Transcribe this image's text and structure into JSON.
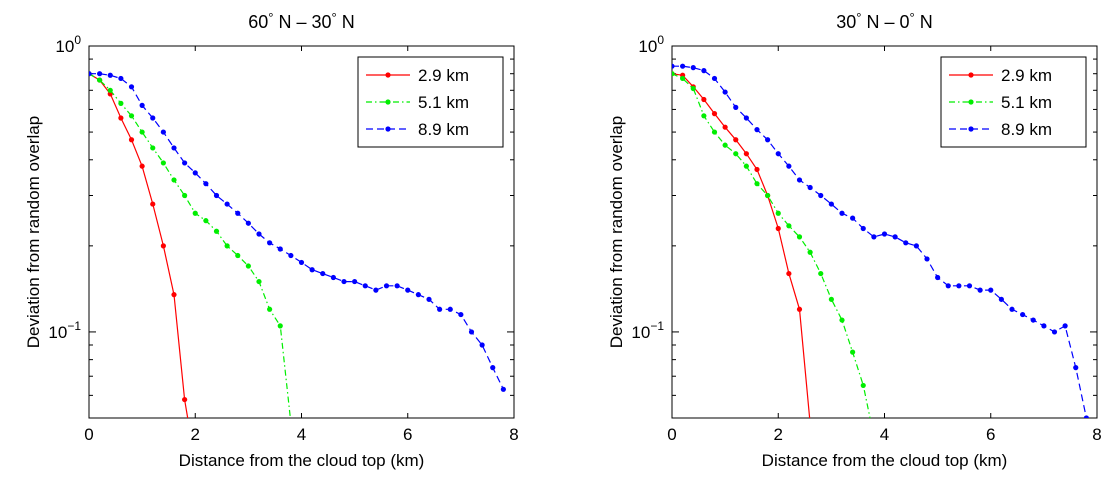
{
  "chart_data": [
    {
      "type": "line",
      "title": "60° N – 30° N",
      "title_parts": {
        "lat1": "60",
        "lat2": "30",
        "deg": "°",
        "hemisphere": "N",
        "dash": "–"
      },
      "xlabel": "Distance from the cloud top (km)",
      "ylabel": "Deviation from random overlap",
      "xlim": [
        0,
        8
      ],
      "ylim": [
        0.05,
        1
      ],
      "yscale": "log",
      "xticks": [
        "0",
        "2",
        "4",
        "6",
        "8"
      ],
      "yticks": [
        {
          "base": "10",
          "exp": "0"
        },
        {
          "base": "10",
          "exp": "−1"
        }
      ],
      "grid": false,
      "legend": "top-right",
      "series": [
        {
          "name": "2.9 km",
          "color": "#ff0000",
          "dash": "",
          "x": [
            0,
            0.2,
            0.4,
            0.6,
            0.8,
            1.0,
            1.2,
            1.4,
            1.6,
            1.8,
            1.9
          ],
          "y": [
            0.8,
            0.76,
            0.68,
            0.56,
            0.47,
            0.38,
            0.28,
            0.2,
            0.135,
            0.058,
            0.045
          ]
        },
        {
          "name": "5.1 km",
          "color": "#00ee00",
          "dash": "6,3,1.5,3",
          "x": [
            0,
            0.2,
            0.4,
            0.6,
            0.8,
            1.0,
            1.2,
            1.4,
            1.6,
            1.8,
            2.0,
            2.2,
            2.4,
            2.6,
            2.8,
            3.0,
            3.2,
            3.4,
            3.6,
            3.8,
            3.9
          ],
          "y": [
            0.8,
            0.76,
            0.7,
            0.63,
            0.57,
            0.5,
            0.44,
            0.39,
            0.34,
            0.3,
            0.26,
            0.245,
            0.225,
            0.2,
            0.185,
            0.17,
            0.15,
            0.12,
            0.105,
            0.048,
            0.038
          ]
        },
        {
          "name": "8.9 km",
          "color": "#0000ff",
          "dash": "7,4",
          "x": [
            0,
            0.2,
            0.4,
            0.6,
            0.8,
            1.0,
            1.2,
            1.4,
            1.6,
            1.8,
            2.0,
            2.2,
            2.4,
            2.6,
            2.8,
            3.0,
            3.2,
            3.4,
            3.6,
            3.8,
            4.0,
            4.2,
            4.4,
            4.6,
            4.8,
            5.0,
            5.2,
            5.4,
            5.6,
            5.8,
            6.0,
            6.2,
            6.4,
            6.6,
            6.8,
            7.0,
            7.2,
            7.4,
            7.6,
            7.8
          ],
          "y": [
            0.8,
            0.8,
            0.79,
            0.77,
            0.72,
            0.62,
            0.56,
            0.5,
            0.44,
            0.39,
            0.36,
            0.33,
            0.3,
            0.28,
            0.26,
            0.24,
            0.22,
            0.205,
            0.195,
            0.185,
            0.175,
            0.165,
            0.16,
            0.155,
            0.15,
            0.15,
            0.145,
            0.14,
            0.145,
            0.145,
            0.14,
            0.135,
            0.13,
            0.12,
            0.12,
            0.115,
            0.1,
            0.09,
            0.075,
            0.063
          ]
        }
      ]
    },
    {
      "type": "line",
      "title": "30° N – 0° N",
      "title_parts": {
        "lat1": "30",
        "lat2": "0",
        "deg": "°",
        "hemisphere": "N",
        "dash": "–"
      },
      "xlabel": "Distance from the cloud top (km)",
      "ylabel": "Deviation from random overlap",
      "xlim": [
        0,
        8
      ],
      "ylim": [
        0.05,
        1
      ],
      "yscale": "log",
      "xticks": [
        "0",
        "2",
        "4",
        "6",
        "8"
      ],
      "yticks": [
        {
          "base": "10",
          "exp": "0"
        },
        {
          "base": "10",
          "exp": "−1"
        }
      ],
      "grid": false,
      "legend": "top-right",
      "series": [
        {
          "name": "2.9 km",
          "color": "#ff0000",
          "dash": "",
          "x": [
            0,
            0.2,
            0.4,
            0.6,
            0.8,
            1.0,
            1.2,
            1.4,
            1.6,
            1.8,
            2.0,
            2.2,
            2.4,
            2.6,
            2.7
          ],
          "y": [
            0.8,
            0.79,
            0.72,
            0.65,
            0.58,
            0.52,
            0.47,
            0.42,
            0.37,
            0.3,
            0.23,
            0.16,
            0.12,
            0.048,
            0.04
          ]
        },
        {
          "name": "5.1 km",
          "color": "#00ee00",
          "dash": "6,3,1.5,3",
          "x": [
            0,
            0.2,
            0.4,
            0.6,
            0.8,
            1.0,
            1.2,
            1.4,
            1.6,
            1.8,
            2.0,
            2.2,
            2.4,
            2.6,
            2.8,
            3.0,
            3.2,
            3.4,
            3.6,
            3.8
          ],
          "y": [
            0.8,
            0.77,
            0.71,
            0.57,
            0.5,
            0.45,
            0.42,
            0.38,
            0.33,
            0.3,
            0.26,
            0.235,
            0.215,
            0.19,
            0.16,
            0.13,
            0.11,
            0.085,
            0.065,
            0.043
          ]
        },
        {
          "name": "8.9 km",
          "color": "#0000ff",
          "dash": "7,4",
          "x": [
            0,
            0.2,
            0.4,
            0.6,
            0.8,
            1.0,
            1.2,
            1.4,
            1.6,
            1.8,
            2.0,
            2.2,
            2.4,
            2.6,
            2.8,
            3.0,
            3.2,
            3.4,
            3.6,
            3.8,
            4.0,
            4.2,
            4.4,
            4.6,
            4.8,
            5.0,
            5.2,
            5.4,
            5.6,
            5.8,
            6.0,
            6.2,
            6.4,
            6.6,
            6.8,
            7.0,
            7.2,
            7.4,
            7.6,
            7.8
          ],
          "y": [
            0.85,
            0.85,
            0.84,
            0.82,
            0.77,
            0.69,
            0.61,
            0.56,
            0.51,
            0.47,
            0.42,
            0.38,
            0.34,
            0.32,
            0.3,
            0.28,
            0.26,
            0.25,
            0.23,
            0.215,
            0.22,
            0.215,
            0.205,
            0.2,
            0.18,
            0.155,
            0.145,
            0.145,
            0.145,
            0.14,
            0.14,
            0.13,
            0.12,
            0.115,
            0.11,
            0.105,
            0.1,
            0.105,
            0.075,
            0.05
          ]
        }
      ]
    }
  ]
}
